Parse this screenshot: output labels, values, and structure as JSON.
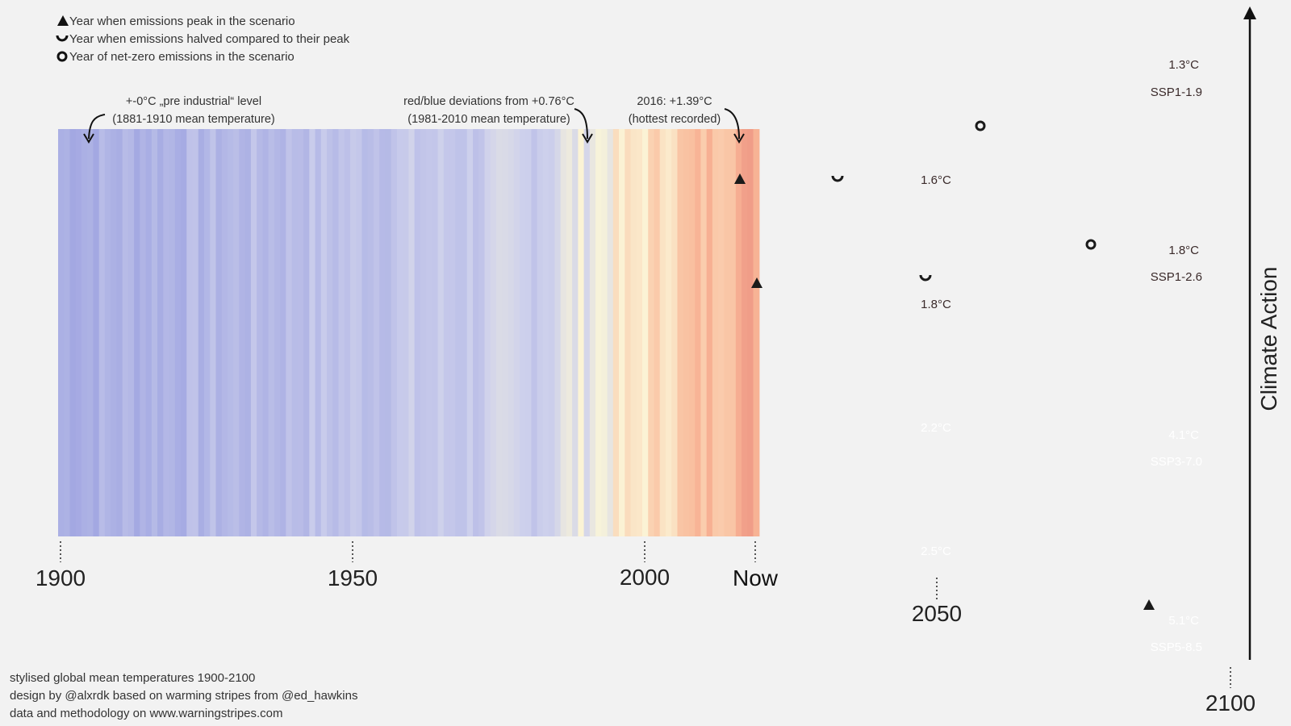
{
  "legend": {
    "peak": "Year when emissions peak in the scenario",
    "halved": "Year when emissions halved compared to their peak",
    "netzero": "Year of net-zero emissions in the scenario"
  },
  "annotations": {
    "preindustrial_line1": "+-0°C „pre industrial“ level",
    "preindustrial_line2": "(1881-1910 mean temperature)",
    "deviation_line1": "red/blue deviations from +0.76°C",
    "deviation_line2": "(1981-2010 mean temperature)",
    "hottest_line1": "2016: +1.39°C",
    "hottest_line2": "(hottest recorded)"
  },
  "axis": {
    "label_1900": "1900",
    "label_1950": "1950",
    "label_2000": "2000",
    "label_now": "Now",
    "label_2050": "2050",
    "label_2100": "2100"
  },
  "side": {
    "climate_action": "Climate Action"
  },
  "footer": {
    "line1": "stylised global mean temperatures 1900-2100",
    "line2": "design by @alxrdk based on warming stripes from @ed_hawkins",
    "line3": "data and methodology on www.warningstripes.com"
  },
  "colors": {
    "background": "#f2f2f2",
    "cold": "#a3a8e2",
    "neutral": "#fbf6d8",
    "warm": "#f9b898",
    "hot": "#e06a6a",
    "very_hot": "#b52468",
    "extreme": "#5c0b50"
  },
  "chart_data": {
    "type": "stripes",
    "x_range": [
      1900,
      2100
    ],
    "now_year": 2020,
    "historical_anomaly_range_c": [
      0,
      1.39
    ],
    "scenarios": [
      {
        "name": "SSP1-1.9",
        "temp_2050": "1.6°C",
        "temp_2100": "1.3°C",
        "peak_marker": "triangle",
        "halved_marker": "smile",
        "netzero_marker": "circle"
      },
      {
        "name": "SSP1-2.6",
        "temp_2050": "1.8°C",
        "temp_2100": "1.8°C",
        "peak_marker": "triangle",
        "halved_marker": "smile",
        "netzero_marker": "circle"
      },
      {
        "name": "SSP3-7.0",
        "temp_2050": "2.2°C",
        "temp_2100": "4.1°C"
      },
      {
        "name": "SSP5-8.5",
        "temp_2050": "2.5°C",
        "temp_2100": "5.1°C",
        "peak_marker": "triangle"
      }
    ]
  }
}
